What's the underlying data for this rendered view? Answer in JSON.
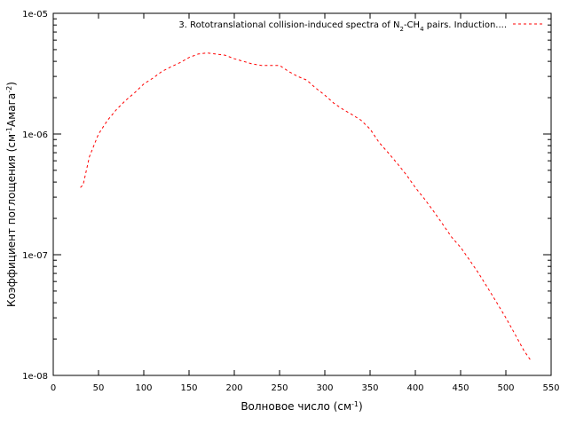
{
  "chart_data": {
    "type": "line",
    "xlabel": {
      "main": "Волновое число (см",
      "sup": "-1",
      "end": ")"
    },
    "ylabel": {
      "main": "Коэффициент поглощения (см",
      "sup1": "-1",
      "mid": "Амага",
      "sup2": "-2",
      "end": ")"
    },
    "xlim": [
      0,
      550
    ],
    "ylim": [
      1e-08,
      1e-05
    ],
    "yscale": "log",
    "grid": false,
    "legend_position": "top-right",
    "x_ticks": [
      0,
      50,
      100,
      150,
      200,
      250,
      300,
      350,
      400,
      450,
      500,
      550
    ],
    "y_ticks": [
      {
        "value": 1e-05,
        "label": "1e-05"
      },
      {
        "value": 1e-06,
        "label": "1e-06"
      },
      {
        "value": 1e-07,
        "label": "1e-07"
      },
      {
        "value": 1e-08,
        "label": "1e-08"
      }
    ],
    "series": [
      {
        "legend": {
          "prefix": "3. Rototranslational collision-induced spectra of N",
          "sub1": "2",
          "mid": "-CH",
          "sub2": "4",
          "suffix": " pairs. Induction...."
        },
        "color": "#ff0000",
        "style": "dashed",
        "x": [
          30,
          33,
          40,
          50,
          60,
          70,
          80,
          90,
          100,
          110,
          120,
          130,
          140,
          150,
          160,
          170,
          180,
          190,
          200,
          210,
          220,
          230,
          240,
          250,
          260,
          270,
          280,
          290,
          300,
          310,
          320,
          330,
          340,
          350,
          360,
          370,
          380,
          390,
          400,
          410,
          420,
          430,
          440,
          450,
          460,
          470,
          480,
          490,
          500,
          510,
          520,
          527
        ],
        "y": [
          3.6e-07,
          3.8e-07,
          6.5e-07,
          1e-06,
          1.3e-06,
          1.6e-06,
          1.9e-06,
          2.2e-06,
          2.6e-06,
          2.9e-06,
          3.3e-06,
          3.6e-06,
          3.9e-06,
          4.3e-06,
          4.6e-06,
          4.7e-06,
          4.6e-06,
          4.5e-06,
          4.2e-06,
          4e-06,
          3.8e-06,
          3.7e-06,
          3.7e-06,
          3.7e-06,
          3.3e-06,
          3e-06,
          2.8e-06,
          2.4e-06,
          2.1e-06,
          1.8e-06,
          1.6e-06,
          1.45e-06,
          1.3e-06,
          1.1e-06,
          8.5e-07,
          7e-07,
          5.7e-07,
          4.6e-07,
          3.6e-07,
          2.9e-07,
          2.3e-07,
          1.8e-07,
          1.4e-07,
          1.15e-07,
          9e-08,
          7e-08,
          5.3e-08,
          4e-08,
          3e-08,
          2.2e-08,
          1.6e-08,
          1.35e-08
        ]
      }
    ]
  }
}
